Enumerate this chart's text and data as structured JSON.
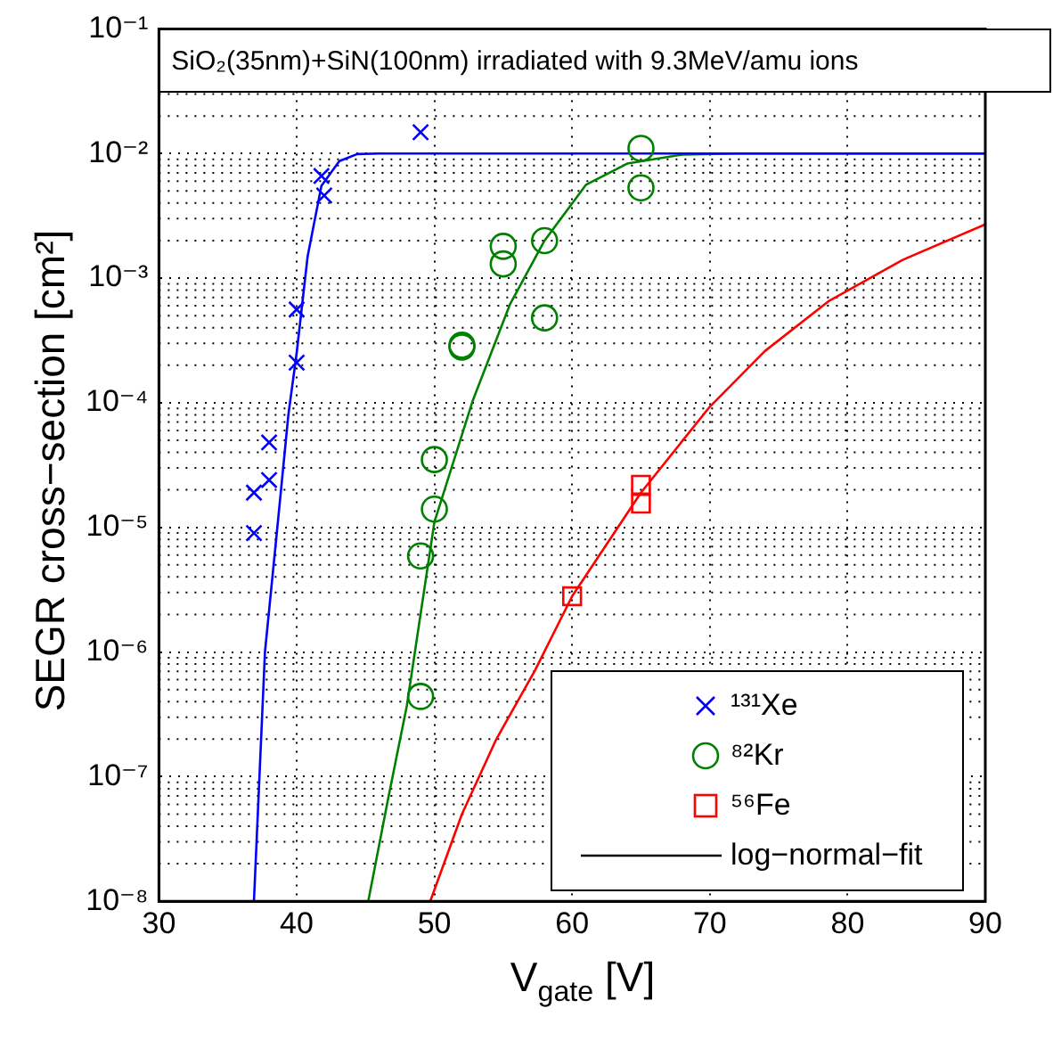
{
  "chart_data": {
    "type": "scatter",
    "title": "SiO₂(35nm)+SiN(100nm) irradiated with 9.3MeV/amu ions",
    "xlabel": "V$_{gate}$ [V]",
    "ylabel": "SEGR cross−section [cm²]",
    "xlim": [
      30,
      90
    ],
    "xticks": [
      30,
      40,
      50,
      60,
      70,
      80,
      90
    ],
    "ylim": [
      1e-08,
      0.1
    ],
    "yticks": [
      {
        "value": 1e-08,
        "label": "10⁻⁸"
      },
      {
        "value": 1e-07,
        "label": "10⁻⁷"
      },
      {
        "value": 1e-06,
        "label": "10⁻⁶"
      },
      {
        "value": 1e-05,
        "label": "10⁻⁵"
      },
      {
        "value": 0.0001,
        "label": "10⁻⁴"
      },
      {
        "value": 0.001,
        "label": "10⁻³"
      },
      {
        "value": 0.01,
        "label": "10⁻²"
      },
      {
        "value": 0.1,
        "label": "10⁻¹"
      }
    ],
    "log": "y",
    "grid": true,
    "legend": "bottom right",
    "series": [
      {
        "name": "¹³¹Xe",
        "marker": "cross",
        "color": "#0000ff",
        "x": [
          36.9,
          36.9,
          38,
          38,
          40,
          40,
          41.8,
          42,
          49
        ],
        "values": [
          9e-06,
          1.9e-05,
          2.4e-05,
          4.8e-05,
          0.00021,
          0.00056,
          0.0066,
          0.0046,
          0.0148
        ]
      },
      {
        "name": "⁸²Kr",
        "marker": "circle",
        "color": "#008000",
        "x": [
          49,
          49,
          50,
          50,
          52,
          52,
          55,
          55,
          58,
          58,
          65,
          65
        ],
        "values": [
          4.4e-07,
          5.9e-06,
          1.4e-05,
          3.5e-05,
          0.00029,
          0.00028,
          0.0013,
          0.0018,
          0.00048,
          0.002,
          0.0053,
          0.011
        ]
      },
      {
        "name": "⁵⁶Fe",
        "marker": "square",
        "color": "#ff0000",
        "x": [
          60,
          65,
          65
        ],
        "values": [
          2.8e-06,
          1.55e-05,
          2.2e-05
        ]
      },
      {
        "type": "line",
        "marker": "none",
        "color": "#0000ff",
        "x": [
          36.9,
          37.7,
          38.6,
          39.4,
          40,
          40.8,
          41.8,
          43.1,
          44.4,
          46,
          90
        ],
        "values": [
          1e-08,
          1e-06,
          1e-05,
          8e-05,
          0.00025,
          0.0015,
          0.0055,
          0.0087,
          0.0099,
          0.01,
          0.01
        ]
      },
      {
        "type": "line",
        "marker": "none",
        "color": "#008000",
        "x": [
          45.2,
          46.6,
          48,
          50,
          52.8,
          55.5,
          58,
          61,
          64,
          68,
          72,
          90
        ],
        "values": [
          1e-08,
          6.3e-08,
          3.7e-07,
          1.1e-05,
          0.000105,
          0.00062,
          0.002,
          0.0056,
          0.0083,
          0.0098,
          0.01,
          0.01
        ]
      },
      {
        "type": "line",
        "marker": "none",
        "color": "#ff0000",
        "x": [
          49.7,
          52,
          54.5,
          57.3,
          60,
          65,
          70,
          74,
          78.6,
          84,
          90
        ],
        "values": [
          1e-08,
          5e-08,
          2e-07,
          7.1e-07,
          2.8e-06,
          1.9e-05,
          9.3e-05,
          0.00026,
          0.00065,
          0.0014,
          0.0027
        ]
      },
      {
        "name": "log−normal−fit",
        "type": "line",
        "marker": "none",
        "color": "#000000"
      }
    ]
  }
}
